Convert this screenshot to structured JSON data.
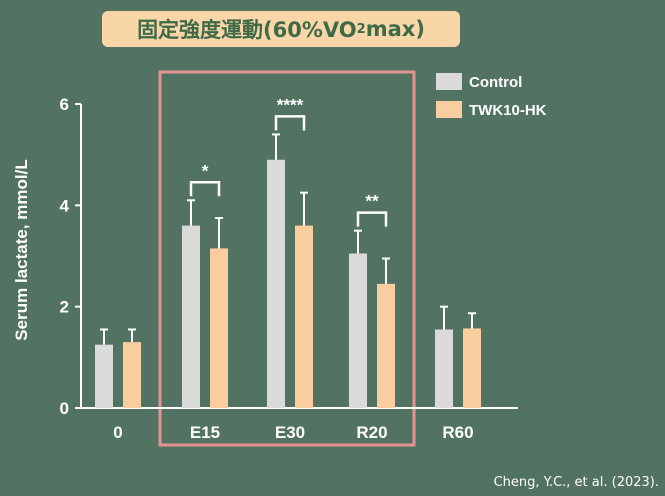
{
  "title": {
    "main": "固定強度運動(60%VO",
    "sub": "2",
    "tail": "max)"
  },
  "citation": "Cheng, Y.C., et al. (2023).",
  "colors": {
    "background": "#527262",
    "control": "#DADADA",
    "twk": "#F9CD9D",
    "highlight_box": "#E89393",
    "title_bg": "#F9D6A8",
    "title_text": "#3F6A48"
  },
  "chart_data": {
    "type": "bar",
    "ylabel": "Serum lactate, mmol/L",
    "xlabel": "",
    "ylim": [
      0,
      6
    ],
    "yticks": [
      0,
      2,
      4,
      6
    ],
    "categories": [
      "0",
      "E15",
      "E30",
      "R20",
      "R60"
    ],
    "series": [
      {
        "name": "Control",
        "values": [
          1.25,
          3.6,
          4.9,
          3.05,
          1.55
        ],
        "errors": [
          0.3,
          0.5,
          0.5,
          0.45,
          0.45
        ]
      },
      {
        "name": "TWK10-HK",
        "values": [
          1.3,
          3.15,
          3.6,
          2.45,
          1.57
        ],
        "errors": [
          0.25,
          0.6,
          0.65,
          0.5,
          0.3
        ]
      }
    ],
    "significance": [
      {
        "category": "E15",
        "label": "*"
      },
      {
        "category": "E30",
        "label": "****"
      },
      {
        "category": "R20",
        "label": "**"
      }
    ],
    "highlight_categories": [
      "E15",
      "E30",
      "R20"
    ],
    "legend_position": "top-right",
    "grid": false
  }
}
